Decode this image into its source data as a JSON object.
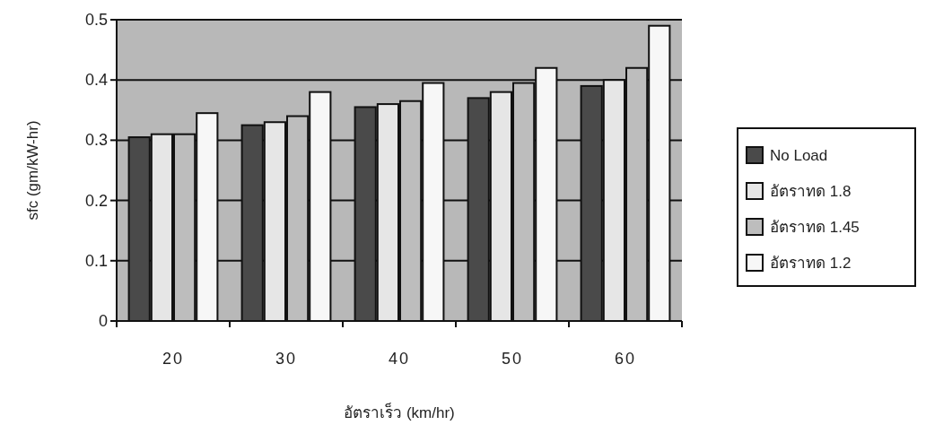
{
  "chart_data": {
    "type": "bar",
    "xlabel": "อัตราเร็ว (km/hr)",
    "ylabel": "sfc (gm/kW-hr)",
    "categories": [
      "20",
      "30",
      "40",
      "50",
      "60"
    ],
    "series": [
      {
        "name": "No Load",
        "color": "#4a4a4a",
        "values": [
          0.305,
          0.325,
          0.355,
          0.37,
          0.39
        ]
      },
      {
        "name": "อัตราทด 1.8",
        "color": "#e6e6e6",
        "values": [
          0.31,
          0.33,
          0.36,
          0.38,
          0.4
        ]
      },
      {
        "name": "อัตราทด 1.45",
        "color": "#bdbdbd",
        "values": [
          0.31,
          0.34,
          0.365,
          0.395,
          0.42
        ]
      },
      {
        "name": "อัตราทด 1.2",
        "color": "#f7f7f7",
        "values": [
          0.345,
          0.38,
          0.395,
          0.42,
          0.49
        ]
      }
    ],
    "ylim": [
      0,
      0.5
    ],
    "yticks": [
      0,
      0.1,
      0.2,
      0.3,
      0.4,
      0.5
    ],
    "grid": "y",
    "legend": "right"
  }
}
